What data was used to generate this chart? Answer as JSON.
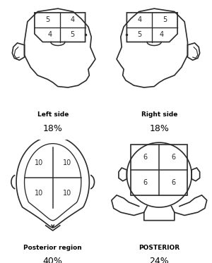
{
  "bg_color": "#ffffff",
  "line_color": "#2a2a2a",
  "line_width": 1.2,
  "panels": [
    {
      "title": "Left side",
      "percent": "18%",
      "type": "side_left",
      "quadrants": [
        [
          "5",
          "4"
        ],
        [
          "4",
          "5"
        ]
      ]
    },
    {
      "title": "Right side",
      "percent": "18%",
      "type": "side_right",
      "quadrants": [
        [
          "4",
          "5"
        ],
        [
          "5",
          "4"
        ]
      ]
    },
    {
      "title": "Posterior region",
      "percent": "40%",
      "type": "top",
      "quadrants": [
        [
          "10",
          "10"
        ],
        [
          "10",
          "10"
        ]
      ]
    },
    {
      "title": "POSTERIOR",
      "percent": "24%",
      "type": "back",
      "quadrants": [
        [
          "6",
          "6"
        ],
        [
          "6",
          "6"
        ]
      ]
    }
  ],
  "title_fontsize": 6.5,
  "percent_fontsize": 9,
  "number_fontsize": 7
}
